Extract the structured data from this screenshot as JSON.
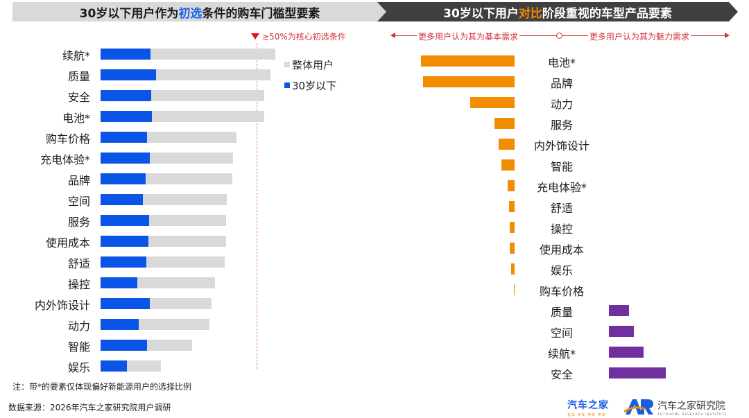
{
  "left_panel": {
    "title_pre": "30岁以下用户作为",
    "title_hl": "初选",
    "title_post": "条件的购车门槛型要素",
    "threshold_note": "≥50%为核心初选条件",
    "legend": [
      {
        "label": "整体用户",
        "color": "#d9d9d9"
      },
      {
        "label": "30岁以下",
        "color": "#0a55e8"
      }
    ],
    "note": "注：带*的要素仅体现偏好新能源用户的选择比例"
  },
  "right_panel": {
    "title_pre": "30岁以下用户",
    "title_hl": "对比",
    "title_post": "阶段重视的车型产品要素",
    "axis_left": "更多用户认为其为基本需求",
    "axis_right": "更多用户认为其为魅力需求"
  },
  "footer": {
    "source": "数据来源：2026年汽车之家研究院用户调研",
    "logo1_main": "汽车之家",
    "logo1_sub": "看车 买车 用车 换车",
    "logo2_main": "汽车之家研究院",
    "logo2_sub": "AUTOHOME RESEARCH INSTITUTE"
  },
  "chart_data": [
    {
      "type": "bar",
      "orientation": "horizontal",
      "title": "30岁以下用户作为初选条件的购车门槛型要素",
      "categories": [
        "续航*",
        "质量",
        "安全",
        "电池*",
        "购车价格",
        "充电体验*",
        "品牌",
        "空间",
        "服务",
        "使用成本",
        "舒适",
        "操控",
        "内外饰设计",
        "动力",
        "智能",
        "娱乐"
      ],
      "series": [
        {
          "name": "整体用户",
          "color": "#d9d9d9",
          "values": [
            56,
            54.4,
            52.4,
            52.4,
            43.6,
            42.4,
            42.2,
            40.4,
            40.2,
            40.2,
            39.8,
            36.7,
            35.6,
            34.9,
            29.3,
            19.3
          ]
        },
        {
          "name": "30岁以下",
          "color": "#0a55e8",
          "values": [
            16,
            17.8,
            16.2,
            16.4,
            14.9,
            15.8,
            14.4,
            13.6,
            15.6,
            15.3,
            14.7,
            11.8,
            15.8,
            12.2,
            14.9,
            8.4
          ]
        }
      ],
      "reference_line": {
        "value": 50,
        "label": "≥50%为核心初选条件",
        "color": "#d0343a"
      },
      "unit": "%",
      "legend_position": "right-top",
      "grid": false
    },
    {
      "type": "bar",
      "orientation": "horizontal-diverging",
      "title": "30岁以下用户对比阶段重视的车型产品要素",
      "categories": [
        "电池*",
        "品牌",
        "动力",
        "服务",
        "内外饰设计",
        "智能",
        "充电体验*",
        "舒适",
        "操控",
        "使用成本",
        "娱乐",
        "购车价格",
        "质量",
        "空间",
        "续航*",
        "安全"
      ],
      "values": [
        -135,
        -132,
        -64,
        -29,
        -23,
        -19,
        -10,
        -8,
        -7,
        -7,
        -5,
        -1,
        29,
        36,
        50,
        82
      ],
      "value_note": "relative bar lengths in px; negative = 更多用户认为其为基本需求 (orange), positive = 更多用户认为其为魅力需求 (purple)",
      "colors": {
        "basic": "#f28c00",
        "attractive": "#7030a0"
      },
      "axis_labels": {
        "left": "更多用户认为其为基本需求",
        "right": "更多用户认为其为魅力需求"
      }
    }
  ]
}
